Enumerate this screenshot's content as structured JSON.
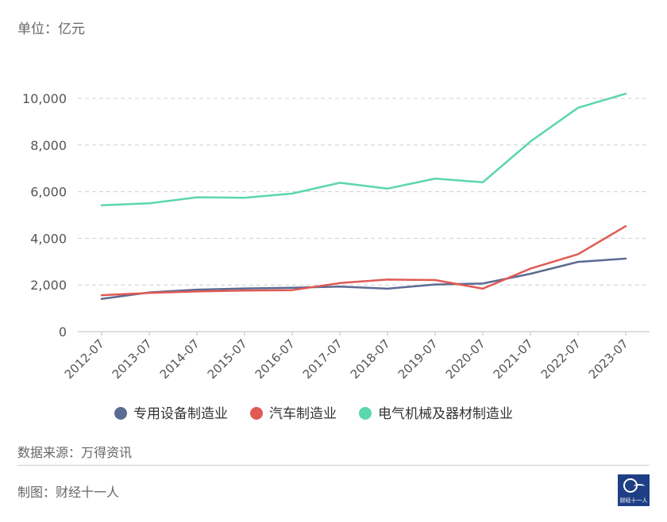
{
  "header": {
    "unit_label": "单位：亿元"
  },
  "footer": {
    "source_label": "数据来源：万得资讯",
    "maker_label": "制图：财经十一人",
    "logo_text": "财经十一人"
  },
  "chart_data": {
    "type": "line",
    "title": "",
    "xlabel": "",
    "ylabel": "",
    "categories": [
      "2012-07",
      "2013-07",
      "2014-07",
      "2015-07",
      "2016-07",
      "2017-07",
      "2018-07",
      "2019-07",
      "2020-07",
      "2021-07",
      "2022-07",
      "2023-07"
    ],
    "ylim": [
      0,
      10000
    ],
    "yticks": [
      0,
      2000,
      4000,
      6000,
      8000,
      10000
    ],
    "ytick_labels": [
      "0",
      "2,000",
      "4,000",
      "6,000",
      "8,000",
      "10,000"
    ],
    "grid": true,
    "legend_position": "bottom",
    "series": [
      {
        "name": "专用设备制造业",
        "color": "#5b6b93",
        "values": [
          1400,
          1680,
          1800,
          1850,
          1880,
          1930,
          1840,
          2020,
          2060,
          2480,
          2990,
          3130
        ]
      },
      {
        "name": "汽车制造业",
        "color": "#e05a54",
        "values": [
          1560,
          1660,
          1720,
          1760,
          1780,
          2080,
          2230,
          2210,
          1840,
          2700,
          3320,
          4520
        ]
      },
      {
        "name": "电气机械及器材制造业",
        "color": "#5cd6ac",
        "values": [
          5420,
          5500,
          5760,
          5740,
          5920,
          6380,
          6130,
          6560,
          6400,
          8150,
          9600,
          10200
        ]
      }
    ]
  }
}
